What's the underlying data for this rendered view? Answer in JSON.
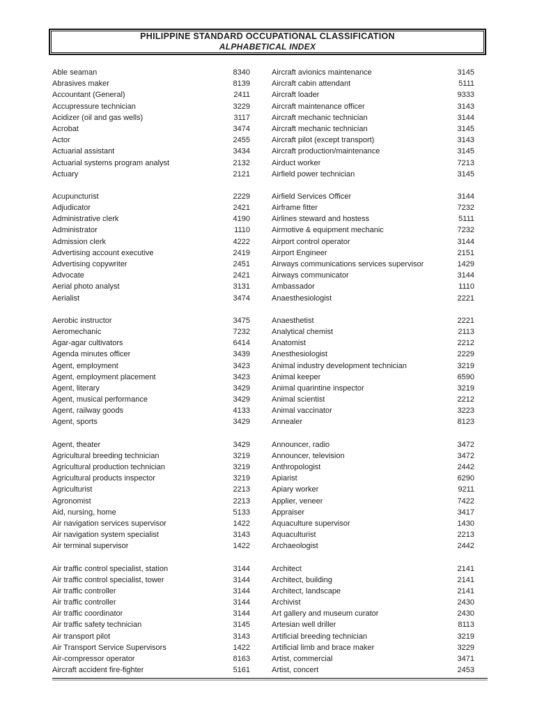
{
  "header": {
    "title": "PHILIPPINE STANDARD OCCUPATIONAL CLASSIFICATION",
    "subtitle": "ALPHABETICAL INDEX"
  },
  "colors": {
    "page_background": "#ffffff",
    "text": "#1c1c1c",
    "title_box_border": "#121212",
    "footer_rule": "#6f6f6f"
  },
  "index": {
    "columns": [
      {
        "name": "left",
        "blocks": [
          [
            [
              "Able seaman",
              "8340"
            ],
            [
              "Abrasives maker",
              "8139"
            ],
            [
              "Accountant (General)",
              "2411"
            ],
            [
              "Accupressure technician",
              "3229"
            ],
            [
              "Acidizer (oil and gas wells)",
              "3117"
            ],
            [
              "Acrobat",
              "3474"
            ],
            [
              "Actor",
              "2455"
            ],
            [
              "Actuarial assistant",
              "3434"
            ],
            [
              "Actuarial systems program analyst",
              "2132"
            ],
            [
              "Actuary",
              "2121"
            ]
          ],
          [
            [
              "Acupuncturist",
              "2229"
            ],
            [
              "Adjudicator",
              "2421"
            ],
            [
              "Administrative clerk",
              "4190"
            ],
            [
              "Administrator",
              "1110"
            ],
            [
              "Admission clerk",
              "4222"
            ],
            [
              "Advertising account executive",
              "2419"
            ],
            [
              "Advertising copywriter",
              "2451"
            ],
            [
              "Advocate",
              "2421"
            ],
            [
              "Aerial photo analyst",
              "3131"
            ],
            [
              "Aerialist",
              "3474"
            ]
          ],
          [
            [
              "Aerobic instructor",
              "3475"
            ],
            [
              "Aeromechanic",
              "7232"
            ],
            [
              "Agar-agar cultivators",
              "6414"
            ],
            [
              "Agenda minutes officer",
              "3439"
            ],
            [
              "Agent, employment",
              "3423"
            ],
            [
              "Agent, employment placement",
              "3423"
            ],
            [
              "Agent, literary",
              "3429"
            ],
            [
              "Agent, musical performance",
              "3429"
            ],
            [
              "Agent, railway goods",
              "4133"
            ],
            [
              "Agent, sports",
              "3429"
            ]
          ],
          [
            [
              "Agent, theater",
              "3429"
            ],
            [
              "Agricultural breeding technician",
              "3219"
            ],
            [
              "Agricultural production technician",
              "3219"
            ],
            [
              "Agricultural products inspector",
              "3219"
            ],
            [
              "Agriculturist",
              "2213"
            ],
            [
              "Agronomist",
              "2213"
            ],
            [
              "Aid, nursing, home",
              "5133"
            ],
            [
              "Air navigation services supervisor",
              "1422"
            ],
            [
              "Air navigation system specialist",
              "3143"
            ],
            [
              "Air terminal supervisor",
              "1422"
            ]
          ],
          [
            [
              "Air traffic control specialist, station",
              "3144"
            ],
            [
              "Air traffic control specialist, tower",
              "3144"
            ],
            [
              "Air traffic controller",
              "3144"
            ],
            [
              "Air traffic controller",
              "3144"
            ],
            [
              "Air traffic coordinator",
              "3144"
            ],
            [
              "Air traffic safety technician",
              "3145"
            ],
            [
              "Air transport pilot",
              "3143"
            ],
            [
              "Air Transport Service Supervisors",
              "1422"
            ],
            [
              "Air-compressor operator",
              "8163"
            ],
            [
              "Aircraft accident fire-fighter",
              "5161"
            ]
          ]
        ]
      },
      {
        "name": "right",
        "blocks": [
          [
            [
              "Aircraft avionics maintenance",
              "3145"
            ],
            [
              "Aircraft cabin attendant",
              "5111"
            ],
            [
              "Aircraft loader",
              "9333"
            ],
            [
              "Aircraft maintenance officer",
              "3143"
            ],
            [
              "Aircraft mechanic technician",
              "3144"
            ],
            [
              "Aircraft mechanic technician",
              "3145"
            ],
            [
              "Aircraft pilot (except transport)",
              "3143"
            ],
            [
              "Aircraft production/maintenance",
              "3145"
            ],
            [
              "Airduct worker",
              "7213"
            ],
            [
              "Airfield power technician",
              "3145"
            ]
          ],
          [
            [
              "Airfield Services Officer",
              "3144"
            ],
            [
              "Airframe fitter",
              "7232"
            ],
            [
              "Airlines steward and hostess",
              "5111"
            ],
            [
              "Airmotive & equipment mechanic",
              "7232"
            ],
            [
              "Airport control operator",
              "3144"
            ],
            [
              "Airport Engineer",
              "2151"
            ],
            [
              "Airways communications services supervisor",
              "1429"
            ],
            [
              "Airways communicator",
              "3144"
            ],
            [
              "Ambassador",
              "1110"
            ],
            [
              "Anaesthesiologist",
              "2221"
            ]
          ],
          [
            [
              "Anaesthetist",
              "2221"
            ],
            [
              "Analytical chemist",
              "2113"
            ],
            [
              "Anatomist",
              "2212"
            ],
            [
              "Anesthesiologist",
              "2229"
            ],
            [
              "Animal industry development technician",
              "3219"
            ],
            [
              "Animal keeper",
              "6590"
            ],
            [
              "Animal quarintine inspector",
              "3219"
            ],
            [
              "Animal scientist",
              "2212"
            ],
            [
              "Animal vaccinator",
              "3223"
            ],
            [
              "Annealer",
              "8123"
            ]
          ],
          [
            [
              "Announcer, radio",
              "3472"
            ],
            [
              "Announcer, television",
              "3472"
            ],
            [
              "Anthropologist",
              "2442"
            ],
            [
              "Apiarist",
              "6290"
            ],
            [
              "Apiary worker",
              "9211"
            ],
            [
              "Applier, veneer",
              "7422"
            ],
            [
              "Appraiser",
              "3417"
            ],
            [
              "Aquaculture supervisor",
              "1430"
            ],
            [
              "Aquaculturist",
              "2213"
            ],
            [
              "Archaeologist",
              "2442"
            ]
          ],
          [
            [
              "Architect",
              "2141"
            ],
            [
              "Architect, building",
              "2141"
            ],
            [
              "Architect, landscape",
              "2141"
            ],
            [
              "Archivist",
              "2430"
            ],
            [
              "Art gallery and museum curator",
              "2430"
            ],
            [
              "Artesian well driller",
              "8113"
            ],
            [
              "Artificial breeding technician",
              "3219"
            ],
            [
              "Artificial limb and brace maker",
              "3229"
            ],
            [
              "Artist, commercial",
              "3471"
            ],
            [
              "Artist, concert",
              "2453"
            ]
          ]
        ]
      }
    ]
  }
}
